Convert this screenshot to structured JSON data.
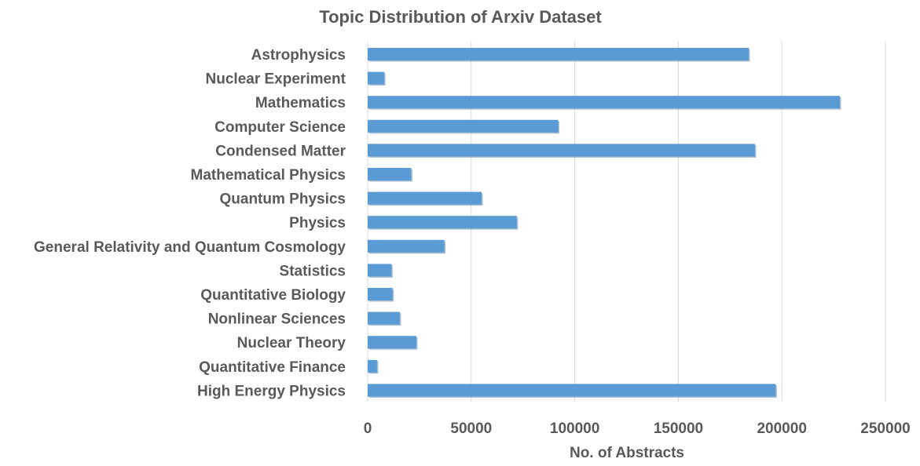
{
  "chart_data": {
    "type": "bar",
    "orientation": "horizontal",
    "title": "Topic Distribution of Arxiv Dataset",
    "xlabel": "No. of Abstracts",
    "ylabel": "",
    "xlim": [
      0,
      250000
    ],
    "xticks": [
      "0",
      "50000",
      "100000",
      "150000",
      "200000",
      "250000"
    ],
    "grid": "vertical",
    "legend": "none",
    "colors": {
      "bar": "#5b9bd5",
      "bar_shadow": "#3f6f9e",
      "text": "#595959",
      "grid": "#d9d9d9"
    },
    "categories": [
      "Astrophysics",
      "Nuclear Experiment",
      "Mathematics",
      "Computer Science",
      "Condensed Matter",
      "Mathematical Physics",
      "Quantum Physics",
      "Physics",
      "General Relativity and Quantum Cosmology",
      "Statistics",
      "Quantitative Biology",
      "Nonlinear Sciences",
      "Nuclear Theory",
      "Quantitative Finance",
      "High Energy Physics"
    ],
    "values": [
      184000,
      8000,
      228000,
      92000,
      187000,
      21000,
      55000,
      72000,
      37000,
      11500,
      12000,
      15500,
      23500,
      4500,
      197000
    ]
  }
}
